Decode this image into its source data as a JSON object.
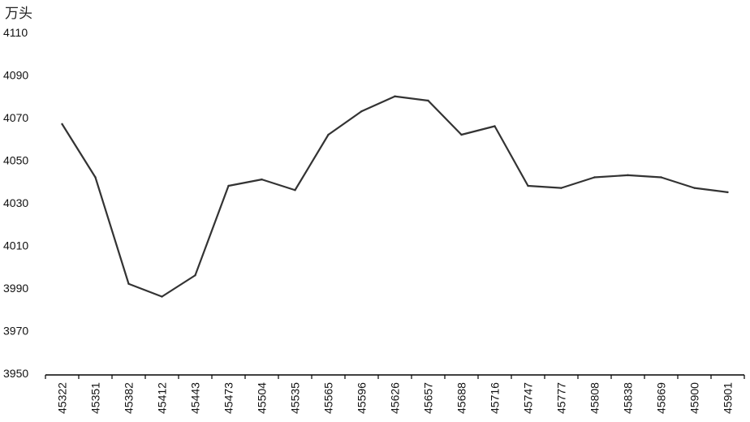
{
  "chart_data": {
    "type": "line",
    "title": "",
    "unit_label": "万头",
    "xlabel": "",
    "ylabel": "",
    "ylim": [
      3950,
      4110
    ],
    "yticks": [
      3950,
      3970,
      3990,
      4010,
      4030,
      4050,
      4070,
      4090,
      4110
    ],
    "grid": false,
    "legend": "none",
    "line_color": "#333333",
    "categories": [
      "45322",
      "45351",
      "45382",
      "45412",
      "45443",
      "45473",
      "45504",
      "45535",
      "45565",
      "45596",
      "45626",
      "45657",
      "45688",
      "45716",
      "45747",
      "45777",
      "45808",
      "45838",
      "45869",
      "45900",
      "45901"
    ],
    "series": [
      {
        "values": [
          4067,
          4042,
          3992,
          3986,
          3996,
          4038,
          4041,
          4036,
          4062,
          4073,
          4080,
          4078,
          4062,
          4066,
          4038,
          4037,
          4042,
          4043,
          4042,
          4037,
          4035
        ]
      }
    ]
  }
}
